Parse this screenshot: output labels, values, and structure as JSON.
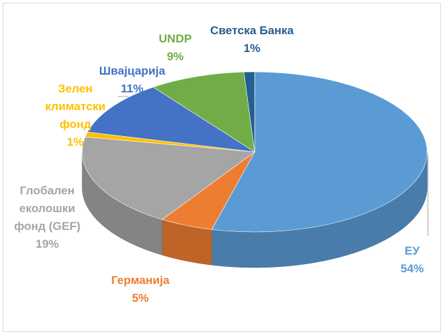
{
  "chart_data": {
    "type": "pie3d",
    "categories": [
      "ЕУ",
      "Германија",
      "Глобален еколошки фонд (GEF)",
      "Зелен климатски фонд",
      "Швајцарија",
      "UNDP",
      "Светска Банка"
    ],
    "values": [
      54,
      5,
      19,
      1,
      11,
      9,
      1
    ],
    "value_labels": [
      "54%",
      "5%",
      "19%",
      "1%",
      "11%",
      "9%",
      "1%"
    ],
    "colors": [
      "#5b9bd5",
      "#ed7d31",
      "#a5a5a5",
      "#ffc000",
      "#4472c4",
      "#70ad47",
      "#255e91"
    ]
  }
}
